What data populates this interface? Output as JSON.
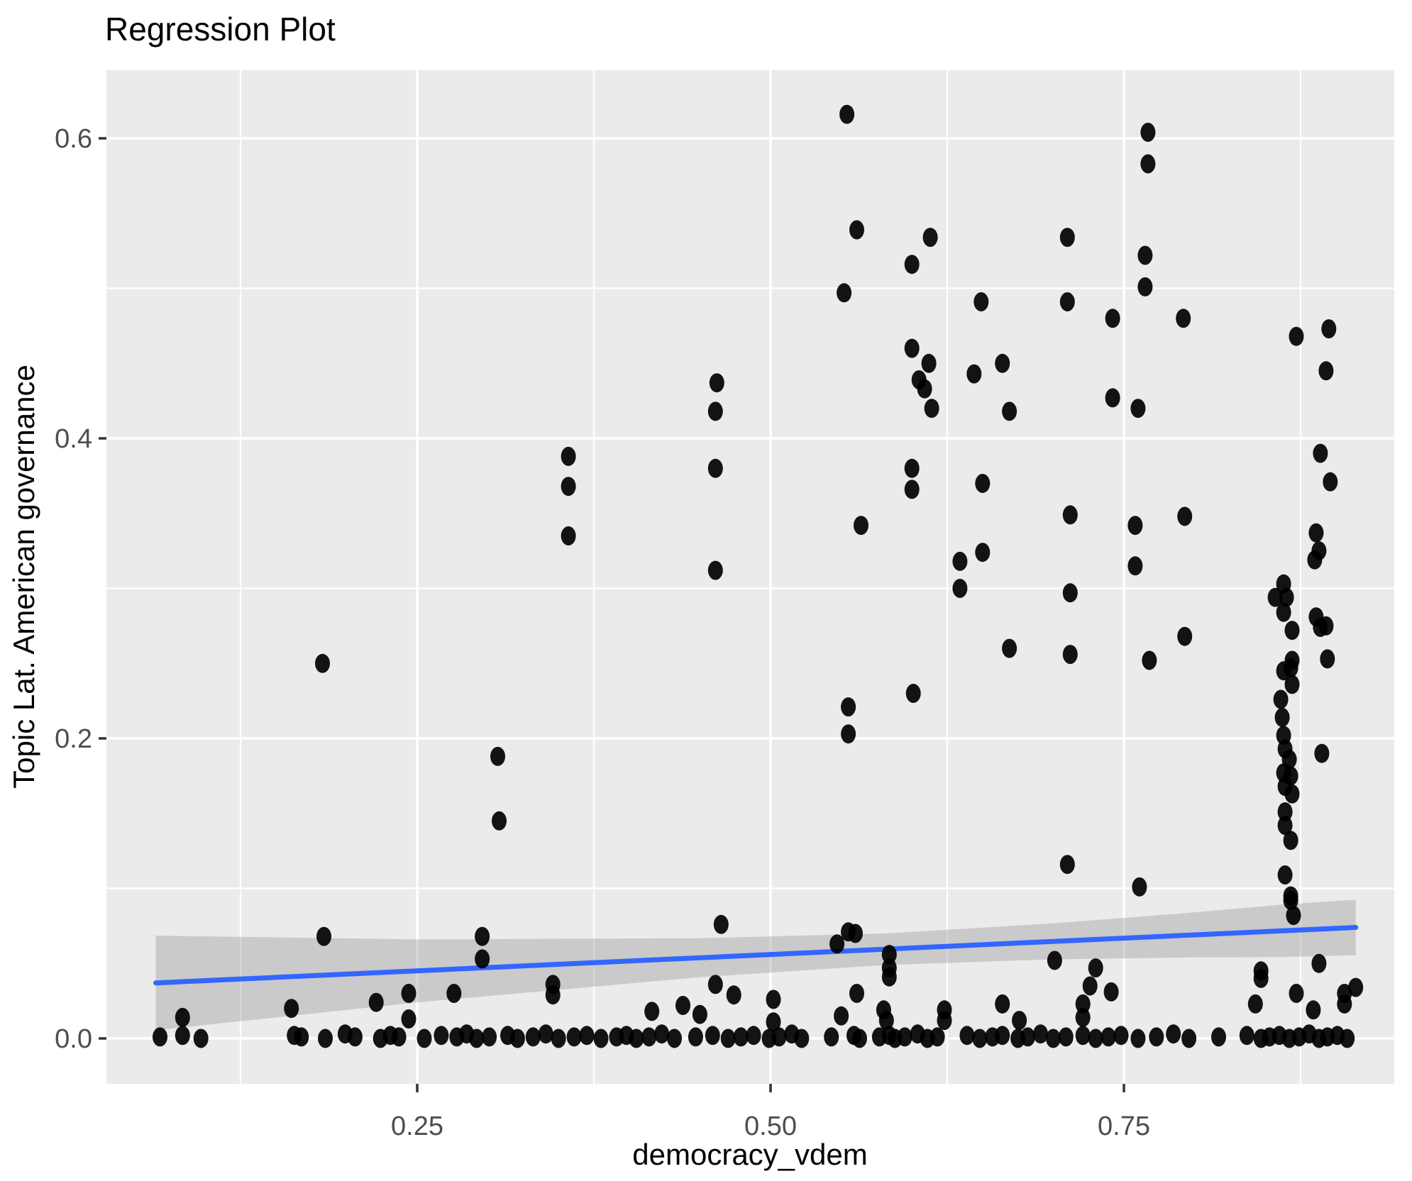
{
  "title": "Regression Plot",
  "axes": {
    "x": {
      "label": "democracy_vdem"
    },
    "y": {
      "label": "Topic Lat. American governance"
    }
  },
  "colors": {
    "panel_bg": "#EBEBEB",
    "grid": "#FFFFFF",
    "point": "#000000",
    "smooth_line": "#3366FF",
    "ci_fill": "#999999",
    "tick_label": "#4D4D4D",
    "tick_mark": "#333333",
    "text": "#000000"
  },
  "chart_data": {
    "type": "scatter",
    "title": "Regression Plot",
    "xlabel": "democracy_vdem",
    "ylabel": "Topic Lat. American governance",
    "xlim": [
      0.03,
      0.941
    ],
    "ylim": [
      -0.03,
      0.645
    ],
    "grid": true,
    "legend": "none",
    "x_ticks": {
      "values": [
        0.25,
        0.5,
        0.75
      ],
      "labels": [
        "0.25",
        "0.50",
        "0.75"
      ],
      "minor": [
        0.125,
        0.375,
        0.625,
        0.875
      ]
    },
    "y_ticks": {
      "values": [
        0.0,
        0.2,
        0.4,
        0.6
      ],
      "labels": [
        "0.0",
        "0.2",
        "0.4",
        "0.6"
      ],
      "minor": [
        0.1,
        0.3,
        0.5
      ]
    },
    "regression_line": {
      "x": [
        0.065,
        0.914
      ],
      "y": [
        0.037,
        0.074
      ]
    },
    "ci_band": {
      "top": [
        [
          0.065,
          0.0685
        ],
        [
          0.25,
          0.066
        ],
        [
          0.45,
          0.0668
        ],
        [
          0.582,
          0.07
        ],
        [
          0.7,
          0.0767
        ],
        [
          0.8,
          0.084
        ],
        [
          0.863,
          0.0893
        ],
        [
          0.914,
          0.0925
        ]
      ],
      "bottom": [
        [
          0.914,
          0.0555
        ],
        [
          0.863,
          0.0543
        ],
        [
          0.8,
          0.054
        ],
        [
          0.7,
          0.0527
        ],
        [
          0.582,
          0.049
        ],
        [
          0.45,
          0.0408
        ],
        [
          0.25,
          0.024
        ],
        [
          0.065,
          0.0055
        ]
      ]
    },
    "points": [
      [
        0.554,
        0.616
      ],
      [
        0.767,
        0.604
      ],
      [
        0.767,
        0.583
      ],
      [
        0.561,
        0.539
      ],
      [
        0.613,
        0.534
      ],
      [
        0.71,
        0.534
      ],
      [
        0.6,
        0.516
      ],
      [
        0.765,
        0.522
      ],
      [
        0.552,
        0.497
      ],
      [
        0.765,
        0.501
      ],
      [
        0.649,
        0.491
      ],
      [
        0.71,
        0.491
      ],
      [
        0.742,
        0.48
      ],
      [
        0.792,
        0.48
      ],
      [
        0.872,
        0.468
      ],
      [
        0.895,
        0.473
      ],
      [
        0.893,
        0.445
      ],
      [
        0.6,
        0.46
      ],
      [
        0.612,
        0.45
      ],
      [
        0.605,
        0.439
      ],
      [
        0.609,
        0.433
      ],
      [
        0.644,
        0.443
      ],
      [
        0.664,
        0.45
      ],
      [
        0.742,
        0.427
      ],
      [
        0.614,
        0.42
      ],
      [
        0.669,
        0.418
      ],
      [
        0.76,
        0.42
      ],
      [
        0.462,
        0.437
      ],
      [
        0.461,
        0.418
      ],
      [
        0.6,
        0.38
      ],
      [
        0.6,
        0.366
      ],
      [
        0.564,
        0.342
      ],
      [
        0.65,
        0.37
      ],
      [
        0.712,
        0.349
      ],
      [
        0.758,
        0.342
      ],
      [
        0.793,
        0.348
      ],
      [
        0.889,
        0.39
      ],
      [
        0.896,
        0.371
      ],
      [
        0.634,
        0.318
      ],
      [
        0.634,
        0.3
      ],
      [
        0.65,
        0.324
      ],
      [
        0.758,
        0.315
      ],
      [
        0.712,
        0.297
      ],
      [
        0.669,
        0.26
      ],
      [
        0.712,
        0.256
      ],
      [
        0.768,
        0.252
      ],
      [
        0.793,
        0.268
      ],
      [
        0.893,
        0.275
      ],
      [
        0.894,
        0.253
      ],
      [
        0.601,
        0.23
      ],
      [
        0.555,
        0.221
      ],
      [
        0.555,
        0.203
      ],
      [
        0.357,
        0.388
      ],
      [
        0.461,
        0.38
      ],
      [
        0.357,
        0.368
      ],
      [
        0.357,
        0.335
      ],
      [
        0.461,
        0.312
      ],
      [
        0.183,
        0.25
      ],
      [
        0.307,
        0.188
      ],
      [
        0.308,
        0.145
      ],
      [
        0.886,
        0.337
      ],
      [
        0.888,
        0.325
      ],
      [
        0.885,
        0.319
      ],
      [
        0.863,
        0.303
      ],
      [
        0.865,
        0.294
      ],
      [
        0.857,
        0.294
      ],
      [
        0.863,
        0.284
      ],
      [
        0.886,
        0.281
      ],
      [
        0.889,
        0.274
      ],
      [
        0.869,
        0.272
      ],
      [
        0.869,
        0.252
      ],
      [
        0.868,
        0.247
      ],
      [
        0.863,
        0.245
      ],
      [
        0.869,
        0.236
      ],
      [
        0.861,
        0.226
      ],
      [
        0.862,
        0.214
      ],
      [
        0.863,
        0.202
      ],
      [
        0.864,
        0.193
      ],
      [
        0.89,
        0.19
      ],
      [
        0.867,
        0.186
      ],
      [
        0.863,
        0.177
      ],
      [
        0.868,
        0.175
      ],
      [
        0.864,
        0.168
      ],
      [
        0.869,
        0.163
      ],
      [
        0.864,
        0.151
      ],
      [
        0.864,
        0.142
      ],
      [
        0.868,
        0.132
      ],
      [
        0.864,
        0.109
      ],
      [
        0.868,
        0.095
      ],
      [
        0.868,
        0.092
      ],
      [
        0.87,
        0.082
      ],
      [
        0.71,
        0.116
      ],
      [
        0.761,
        0.101
      ],
      [
        0.465,
        0.076
      ],
      [
        0.555,
        0.071
      ],
      [
        0.56,
        0.07
      ],
      [
        0.547,
        0.063
      ],
      [
        0.584,
        0.056
      ],
      [
        0.584,
        0.047
      ],
      [
        0.584,
        0.041
      ],
      [
        0.888,
        0.05
      ],
      [
        0.184,
        0.068
      ],
      [
        0.296,
        0.068
      ],
      [
        0.296,
        0.053
      ],
      [
        0.847,
        0.045
      ],
      [
        0.847,
        0.04
      ],
      [
        0.872,
        0.03
      ],
      [
        0.906,
        0.03
      ],
      [
        0.906,
        0.023
      ],
      [
        0.914,
        0.034
      ],
      [
        0.884,
        0.019
      ],
      [
        0.843,
        0.023
      ],
      [
        0.701,
        0.052
      ],
      [
        0.73,
        0.047
      ],
      [
        0.726,
        0.035
      ],
      [
        0.741,
        0.031
      ],
      [
        0.721,
        0.023
      ],
      [
        0.721,
        0.014
      ],
      [
        0.502,
        0.026
      ],
      [
        0.502,
        0.011
      ],
      [
        0.55,
        0.015
      ],
      [
        0.561,
        0.03
      ],
      [
        0.58,
        0.019
      ],
      [
        0.582,
        0.012
      ],
      [
        0.623,
        0.019
      ],
      [
        0.623,
        0.012
      ],
      [
        0.664,
        0.023
      ],
      [
        0.676,
        0.012
      ],
      [
        0.244,
        0.03
      ],
      [
        0.244,
        0.013
      ],
      [
        0.161,
        0.02
      ],
      [
        0.084,
        0.014
      ],
      [
        0.276,
        0.03
      ],
      [
        0.346,
        0.036
      ],
      [
        0.346,
        0.029
      ],
      [
        0.416,
        0.018
      ],
      [
        0.438,
        0.022
      ],
      [
        0.45,
        0.016
      ],
      [
        0.474,
        0.029
      ],
      [
        0.461,
        0.036
      ],
      [
        0.221,
        0.024
      ],
      [
        0.068,
        0.001
      ],
      [
        0.084,
        0.002
      ],
      [
        0.097,
        0.0
      ],
      [
        0.163,
        0.002
      ],
      [
        0.168,
        0.001
      ],
      [
        0.185,
        0.0
      ],
      [
        0.199,
        0.003
      ],
      [
        0.206,
        0.001
      ],
      [
        0.224,
        0.0
      ],
      [
        0.231,
        0.002
      ],
      [
        0.237,
        0.001
      ],
      [
        0.255,
        0.0
      ],
      [
        0.267,
        0.002
      ],
      [
        0.278,
        0.001
      ],
      [
        0.285,
        0.003
      ],
      [
        0.292,
        0.0
      ],
      [
        0.301,
        0.001
      ],
      [
        0.314,
        0.002
      ],
      [
        0.321,
        0.0
      ],
      [
        0.332,
        0.001
      ],
      [
        0.341,
        0.003
      ],
      [
        0.35,
        0.0
      ],
      [
        0.361,
        0.001
      ],
      [
        0.37,
        0.002
      ],
      [
        0.38,
        0.0
      ],
      [
        0.391,
        0.001
      ],
      [
        0.398,
        0.002
      ],
      [
        0.405,
        0.0
      ],
      [
        0.414,
        0.001
      ],
      [
        0.423,
        0.003
      ],
      [
        0.432,
        0.0
      ],
      [
        0.447,
        0.001
      ],
      [
        0.459,
        0.002
      ],
      [
        0.47,
        0.0
      ],
      [
        0.479,
        0.001
      ],
      [
        0.488,
        0.002
      ],
      [
        0.499,
        0.0
      ],
      [
        0.506,
        0.001
      ],
      [
        0.515,
        0.003
      ],
      [
        0.522,
        0.0
      ],
      [
        0.543,
        0.001
      ],
      [
        0.559,
        0.002
      ],
      [
        0.563,
        0.0
      ],
      [
        0.577,
        0.001
      ],
      [
        0.584,
        0.002
      ],
      [
        0.588,
        0.0
      ],
      [
        0.595,
        0.001
      ],
      [
        0.604,
        0.003
      ],
      [
        0.611,
        0.0
      ],
      [
        0.618,
        0.001
      ],
      [
        0.639,
        0.002
      ],
      [
        0.648,
        0.0
      ],
      [
        0.657,
        0.001
      ],
      [
        0.664,
        0.002
      ],
      [
        0.675,
        0.0
      ],
      [
        0.682,
        0.001
      ],
      [
        0.691,
        0.003
      ],
      [
        0.7,
        0.0
      ],
      [
        0.709,
        0.001
      ],
      [
        0.721,
        0.002
      ],
      [
        0.73,
        0.0
      ],
      [
        0.739,
        0.001
      ],
      [
        0.748,
        0.002
      ],
      [
        0.76,
        0.0
      ],
      [
        0.773,
        0.001
      ],
      [
        0.785,
        0.003
      ],
      [
        0.796,
        0.0
      ],
      [
        0.817,
        0.001
      ],
      [
        0.837,
        0.002
      ],
      [
        0.847,
        0.0
      ],
      [
        0.853,
        0.001
      ],
      [
        0.86,
        0.002
      ],
      [
        0.867,
        0.0
      ],
      [
        0.874,
        0.001
      ],
      [
        0.881,
        0.003
      ],
      [
        0.888,
        0.0
      ],
      [
        0.894,
        0.001
      ],
      [
        0.901,
        0.002
      ],
      [
        0.908,
        0.0
      ]
    ]
  }
}
